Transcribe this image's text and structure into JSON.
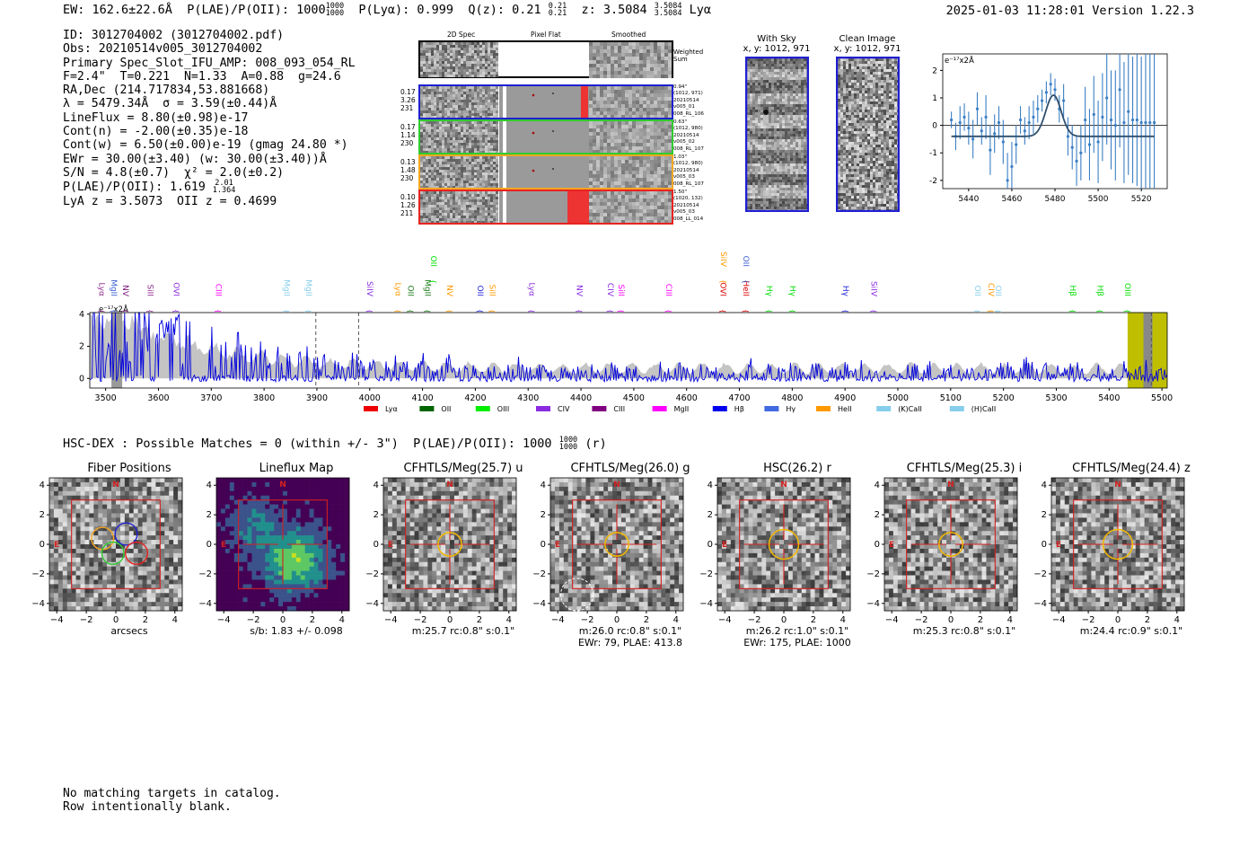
{
  "header": {
    "ew": "EW: 162.6±22.6Å",
    "plae_label": "P(LAE)/P(OII): 1000",
    "plae_hi": "1000",
    "plae_lo": "1000",
    "plya": "P(Lyα): 0.999",
    "qz_label": "Q(z): 0.21",
    "qz_hi": "0.21",
    "qz_lo": "0.21",
    "z_label": "z: 3.5084",
    "z_hi": "3.5084",
    "z_lo": "3.5084",
    "z_line": "Lyα",
    "datetime": "2025-01-03 11:28:01",
    "version": "Version 1.22.3"
  },
  "info": {
    "lines": [
      "ID: 3012704002 (3012704002.pdf)",
      "Obs: 20210514v005_3012704002",
      "Primary Spec_Slot_IFU_AMP: 008_093_054_RL",
      "F=2.4\"  T=0.221  N=1.33  A=0.88  g=24.6",
      "RA,Dec (214.717834,53.881668)",
      "λ = 5479.34Å  σ = 3.59(±0.44)Å",
      "LineFlux = 8.80(±0.98)e-17",
      "Cont(n) = -2.00(±0.35)e-18",
      "Cont(w) = 6.50(±0.00)e-19 (gmag 24.80 *)",
      "EWr = 30.00(±3.40) (w: 30.00(±3.40))Å",
      "S/N = 4.8(±0.7)  χ² = 2.0(±0.2)",
      "P(LAE)/P(OII): 1.619",
      "LyA z = 3.5073  OII z = 0.4699"
    ],
    "plae_hi": "2.01",
    "plae_lo": "1.364"
  },
  "fiber_panel": {
    "col_titles": [
      "2D Spec",
      "Pixel Flat",
      "Smoothed"
    ],
    "weighted_label": "Weighted\nSum",
    "rows": [
      {
        "left": [
          "0.17",
          "3.26",
          "231"
        ],
        "right": [
          "0.94\"",
          "(1012, 971)",
          "20210514",
          "v005_01",
          "008_RL_106"
        ],
        "color": "#1f1fd0"
      },
      {
        "left": [
          "0.17",
          "1.14",
          "230"
        ],
        "right": [
          "0.63\"",
          "(1012, 980)",
          "20210514",
          "v005_02",
          "008_RL_107"
        ],
        "color": "#2ecc2e"
      },
      {
        "left": [
          "0.13",
          "1.48",
          "230"
        ],
        "right": [
          "1.03\"",
          "(1012, 980)",
          "20210514",
          "v005_03",
          "008_RL_107"
        ],
        "color": "#f5a623"
      },
      {
        "left": [
          "0.10",
          "1.26",
          "211"
        ],
        "right": [
          "1.50\"",
          "(1020, 132)",
          "20210514",
          "v005_03",
          "008_LL_014"
        ],
        "color": "#e8231f"
      }
    ]
  },
  "sky_panel": {
    "with_sky_title": "With Sky",
    "with_sky_xy": "x, y: 1012, 971",
    "clean_title": "Clean Image",
    "clean_xy": "x, y: 1012, 971"
  },
  "chart_data": [
    {
      "type": "scatter",
      "title": "",
      "ylabel_note": "e⁻¹⁷x2Å",
      "xlim": [
        5428,
        5532
      ],
      "ylim": [
        -2.3,
        2.6
      ],
      "xticks": [
        5440,
        5460,
        5480,
        5500,
        5520
      ],
      "yticks": [
        -2,
        -1,
        0,
        1,
        2
      ],
      "x": [
        5432,
        5434,
        5436,
        5438,
        5440,
        5442,
        5444,
        5446,
        5448,
        5450,
        5452,
        5454,
        5456,
        5458,
        5460,
        5462,
        5464,
        5466,
        5468,
        5470,
        5472,
        5474,
        5476,
        5478,
        5480,
        5482,
        5484,
        5486,
        5488,
        5490,
        5492,
        5494,
        5496,
        5498,
        5500,
        5502,
        5504,
        5506,
        5508,
        5510,
        5512,
        5514,
        5516,
        5518,
        5520,
        5522,
        5524,
        5526
      ],
      "y": [
        0.2,
        -0.4,
        0.1,
        0.3,
        -0.1,
        -0.5,
        0.6,
        -0.2,
        0.3,
        -0.9,
        -0.3,
        0.1,
        -0.6,
        -2.0,
        -1.5,
        -0.7,
        0.2,
        -0.2,
        0.1,
        0.3,
        0.6,
        0.9,
        1.2,
        1.5,
        1.3,
        0.6,
        0.9,
        -0.4,
        -0.8,
        -1.3,
        -1.0,
        0.2,
        -0.7,
        0.4,
        -0.6,
        0.3,
        1.0,
        0.2,
        0.0,
        1.3,
        0.1,
        0.5,
        0.2,
        0.2,
        0.1,
        0.1,
        0.1,
        0.1
      ],
      "yerr": [
        0.3,
        0.5,
        0.6,
        0.5,
        0.6,
        0.7,
        0.6,
        0.5,
        0.8,
        0.9,
        0.7,
        0.6,
        0.8,
        1.0,
        0.9,
        0.7,
        0.5,
        0.5,
        0.6,
        0.6,
        0.5,
        0.4,
        0.4,
        0.4,
        0.4,
        0.5,
        0.6,
        0.7,
        0.8,
        0.9,
        1.0,
        1.2,
        1.3,
        1.4,
        1.5,
        1.6,
        1.7,
        1.8,
        2.0,
        2.1,
        2.2,
        2.3,
        2.3,
        2.4,
        2.4,
        2.5,
        2.5,
        2.5
      ],
      "model": {
        "amp": 1.5,
        "center": 5479.3,
        "sigma": 3.6,
        "baseline": -0.4,
        "x_range": [
          5432,
          5526
        ]
      }
    },
    {
      "type": "area",
      "title": "Full spectrum",
      "ylabel_note": "e⁻¹⁷x2Å",
      "xlim": [
        3470,
        5510
      ],
      "ylim": [
        -0.6,
        4.1
      ],
      "xticks": [
        3500,
        3600,
        3700,
        3800,
        3900,
        4000,
        4100,
        4200,
        4300,
        4400,
        4500,
        4600,
        4700,
        4800,
        4900,
        5000,
        5100,
        5200,
        5300,
        5400,
        5500
      ],
      "yticks": [
        0,
        2,
        4
      ],
      "series": [
        {
          "name": "spectrum",
          "color": "#0000dd"
        },
        {
          "name": "noise",
          "color": "#c0c0c0"
        }
      ],
      "dashed_lines": [
        3898,
        3979,
        5480
      ],
      "highlight_regions": [
        [
          5435,
          5510
        ]
      ],
      "line_labels": [
        {
          "name": "Lyα",
          "x": 3488,
          "color": "#8b2a8b",
          "row": 0
        },
        {
          "name": "MgII",
          "x": 3511,
          "color": "#3a5fd0",
          "row": 1
        },
        {
          "name": "NV",
          "x": 3533,
          "color": "#7a1a7a",
          "row": 0
        },
        {
          "name": "SiII",
          "x": 3580,
          "color": "#8b2a8b",
          "row": 0
        },
        {
          "name": "OVI",
          "x": 3629,
          "color": "#8a2be2",
          "row": 0
        },
        {
          "name": "CIII",
          "x": 3709,
          "color": "#ff00ff",
          "row": 0
        },
        {
          "name": "MgII",
          "x": 3838,
          "color": "#87ceeb",
          "row": 0
        },
        {
          "name": "MgII",
          "x": 3880,
          "color": "#87ceeb",
          "row": 0
        },
        {
          "name": "SiIV",
          "x": 3995,
          "color": "#8a2be2",
          "row": 0
        },
        {
          "name": "Lyα",
          "x": 4049,
          "color": "#ff9900",
          "row": 0
        },
        {
          "name": "OII",
          "x": 4073,
          "color": "#1a7a1a",
          "row": 0
        },
        {
          "name": "MgII",
          "x": 4105,
          "color": "#1a7a1a",
          "row": 0
        },
        {
          "name": "OII",
          "x": 4116,
          "color": "#00dd00",
          "row": 2
        },
        {
          "name": "NV",
          "x": 4147,
          "color": "#ff9900",
          "row": 0
        },
        {
          "name": "OII",
          "x": 4204,
          "color": "#2222dd",
          "row": 0
        },
        {
          "name": "SiII",
          "x": 4227,
          "color": "#ff9900",
          "row": 0
        },
        {
          "name": "Lyα",
          "x": 4302,
          "color": "#8a2be2",
          "row": 0
        },
        {
          "name": "NV",
          "x": 4392,
          "color": "#8a2be2",
          "row": 0
        },
        {
          "name": "CIV",
          "x": 4451,
          "color": "#8a2be2",
          "row": 0
        },
        {
          "name": "SiII",
          "x": 4471,
          "color": "#ff00ff",
          "row": 0
        },
        {
          "name": "CIII",
          "x": 4561,
          "color": "#ff00ff",
          "row": 0
        },
        {
          "name": "OVI",
          "x": 4664,
          "color": "#dd0000",
          "row": 0
        },
        {
          "name": "SiIV",
          "x": 4665,
          "color": "#ff9900",
          "row": 2
        },
        {
          "name": "HeII",
          "x": 4708,
          "color": "#dd0000",
          "row": 0
        },
        {
          "name": "OII",
          "x": 4708,
          "color": "#3a5fd0",
          "row": 2
        },
        {
          "name": "Hγ",
          "x": 4752,
          "color": "#00dd00",
          "row": 0
        },
        {
          "name": "Hγ",
          "x": 4796,
          "color": "#00dd00",
          "row": 0
        },
        {
          "name": "Hγ",
          "x": 4896,
          "color": "#2222dd",
          "row": 0
        },
        {
          "name": "SiIV",
          "x": 4950,
          "color": "#8a2be2",
          "row": 0
        },
        {
          "name": "OII",
          "x": 5146,
          "color": "#87ceeb",
          "row": 0
        },
        {
          "name": "CIV",
          "x": 5172,
          "color": "#ff9900",
          "row": 0
        },
        {
          "name": "OII",
          "x": 5185,
          "color": "#87ceeb",
          "row": 0
        },
        {
          "name": "Hβ",
          "x": 5326,
          "color": "#00dd00",
          "row": 0
        },
        {
          "name": "Hβ",
          "x": 5378,
          "color": "#00dd00",
          "row": 0
        },
        {
          "name": "OIII",
          "x": 5430,
          "color": "#00dd00",
          "row": 0
        }
      ],
      "legend": [
        {
          "name": "Lyα",
          "color": "#ee0000"
        },
        {
          "name": "OII",
          "color": "#006400"
        },
        {
          "name": "OIII",
          "color": "#00ee00"
        },
        {
          "name": "CIV",
          "color": "#8a2be2"
        },
        {
          "name": "CIII",
          "color": "#800080"
        },
        {
          "name": "MgII",
          "color": "#ff00ff"
        },
        {
          "name": "Hβ",
          "color": "#0000ee"
        },
        {
          "name": "Hγ",
          "color": "#4169e1"
        },
        {
          "name": "HeII",
          "color": "#ff9900"
        },
        {
          "name": "(K)CaII",
          "color": "#87ceeb"
        },
        {
          "name": "(H)CaII",
          "color": "#87ceeb"
        }
      ]
    }
  ],
  "hsc": {
    "label": "HSC-DEX : Possible Matches = 0 (within +/- 3\")  P(LAE)/P(OII): 1000",
    "frac_hi": "1000",
    "frac_lo": "1000",
    "suffix": "(r)"
  },
  "cutouts": {
    "ticks": [
      "−4",
      "−2",
      "0",
      "2",
      "4"
    ],
    "north": "N",
    "east": "E",
    "panels": [
      {
        "title": "Fiber Positions",
        "caption": [
          "arcsecs"
        ],
        "kind": "fiber"
      },
      {
        "title": "Lineflux Map",
        "caption": [
          "s/b: 1.83 +/- 0.098"
        ],
        "kind": "flux"
      },
      {
        "title": "CFHTLS/Meg(25.7) u",
        "caption": [
          "m:25.7 rc:0.8\"  s:0.1\""
        ],
        "kind": "img"
      },
      {
        "title": "CFHTLS/Meg(26.0) g",
        "caption": [
          "m:26.0 rc:0.8\"  s:0.1\"",
          "EWr: 79, PLAE: 413.8"
        ],
        "kind": "img"
      },
      {
        "title": "HSC(26.2) r",
        "caption": [
          "m:26.2 rc:1.0\"  s:0.1\"",
          "EWr: 175, PLAE: 1000"
        ],
        "kind": "img"
      },
      {
        "title": "CFHTLS/Meg(25.3) i",
        "caption": [
          "m:25.3 rc:0.8\"  s:0.1\""
        ],
        "kind": "img"
      },
      {
        "title": "CFHTLS/Meg(24.4) z",
        "caption": [
          "m:24.4 rc:0.9\"  s:0.1\""
        ],
        "kind": "img"
      }
    ]
  },
  "bottom": {
    "lines": [
      "No matching targets in catalog.",
      "Row intentionally blank."
    ]
  }
}
